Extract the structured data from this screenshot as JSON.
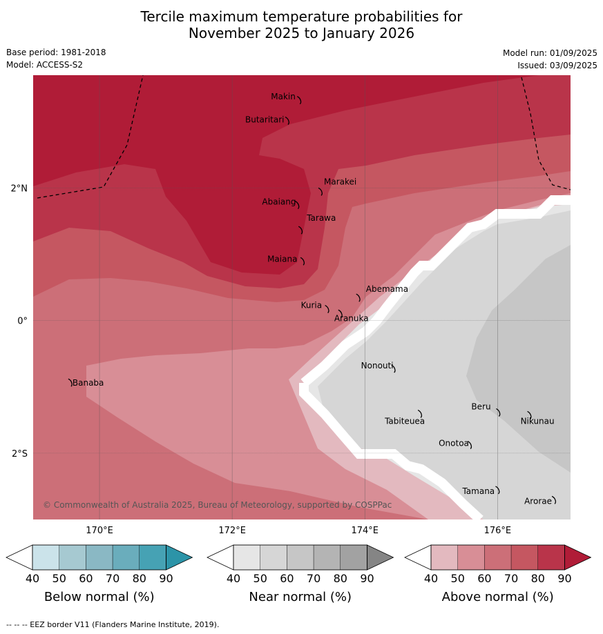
{
  "title_line1": "Tercile maximum temperature probabilities for",
  "title_line2": "November 2025 to January 2026",
  "base_period": "Base period: 1981-2018",
  "model": "Model: ACCESS-S2",
  "model_run": "Model run: 01/09/2025",
  "issued": "Issued: 03/09/2025",
  "copyright": "© Commonwealth of Australia 2025, Bureau of Meteorology, supported by COSPPac",
  "footer": "--  --  -- EEZ border V11 (Flanders Marine Institute, 2019).",
  "axes": {
    "lon_ticks": [
      {
        "lon": 170,
        "label": "170°E"
      },
      {
        "lon": 172,
        "label": "172°E"
      },
      {
        "lon": 174,
        "label": "174°E"
      },
      {
        "lon": 176,
        "label": "176°E"
      }
    ],
    "lat_ticks": [
      {
        "lat": 2,
        "label": "2°N"
      },
      {
        "lat": 0,
        "label": "0°"
      },
      {
        "lat": -2,
        "label": "2°S"
      }
    ],
    "lon_range": [
      169.0,
      177.1
    ],
    "lat_range": [
      -3.0,
      3.7
    ]
  },
  "places": [
    {
      "name": "Makin",
      "lon": 172.98,
      "lat": 3.38
    },
    {
      "name": "Butaritari",
      "lon": 172.8,
      "lat": 3.07
    },
    {
      "name": "Marakei",
      "lon": 173.3,
      "lat": 2.0
    },
    {
      "name": "Abaiang",
      "lon": 172.95,
      "lat": 1.8
    },
    {
      "name": "Tarawa",
      "lon": 173.0,
      "lat": 1.42
    },
    {
      "name": "Maiana",
      "lon": 173.03,
      "lat": 0.95
    },
    {
      "name": "Abemama",
      "lon": 173.87,
      "lat": 0.4
    },
    {
      "name": "Kuria",
      "lon": 173.4,
      "lat": 0.23
    },
    {
      "name": "Aranuka",
      "lon": 173.6,
      "lat": 0.16
    },
    {
      "name": "Nonouti",
      "lon": 174.4,
      "lat": -0.67
    },
    {
      "name": "Banaba",
      "lon": 169.53,
      "lat": -0.88
    },
    {
      "name": "Tabiteuea",
      "lon": 174.8,
      "lat": -1.35
    },
    {
      "name": "Beru",
      "lon": 175.98,
      "lat": -1.33
    },
    {
      "name": "Nikunau",
      "lon": 176.45,
      "lat": -1.37
    },
    {
      "name": "Onotoa",
      "lon": 175.55,
      "lat": -1.82
    },
    {
      "name": "Tamana",
      "lon": 175.97,
      "lat": -2.5
    },
    {
      "name": "Arorae",
      "lon": 176.82,
      "lat": -2.65
    }
  ],
  "colorbars": [
    {
      "label": "Below normal (%)",
      "ticks": [
        "40",
        "50",
        "60",
        "70",
        "80",
        "90"
      ],
      "colors": [
        "#ffffff",
        "#cbe3ea",
        "#a6c9d1",
        "#8ab8c4",
        "#6aadbc",
        "#46a2b4",
        "#2c94a8"
      ]
    },
    {
      "label": "Near normal (%)",
      "ticks": [
        "40",
        "50",
        "60",
        "70",
        "80",
        "90"
      ],
      "colors": [
        "#ffffff",
        "#e6e6e6",
        "#d6d6d6",
        "#c6c6c6",
        "#b4b4b4",
        "#a2a2a2",
        "#858585"
      ]
    },
    {
      "label": "Above normal (%)",
      "ticks": [
        "40",
        "50",
        "60",
        "70",
        "80",
        "90"
      ],
      "colors": [
        "#ffffff",
        "#e3b9bf",
        "#d88e96",
        "#cc6f78",
        "#c55761",
        "#b9344a",
        "#b01c37"
      ]
    }
  ]
}
